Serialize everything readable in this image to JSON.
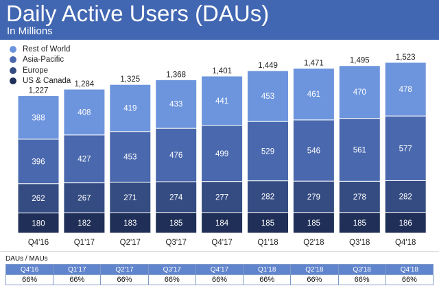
{
  "header": {
    "title": "Daily Active Users (DAUs)",
    "subtitle": "In Millions"
  },
  "colors": {
    "header_bg": "#4267b2",
    "rest_of_world": "#6d95dd",
    "asia_pacific": "#4a68ad",
    "europe": "#354c82",
    "us_canada": "#1f2f57",
    "table_header": "#6185cd"
  },
  "chart_data": {
    "type": "bar",
    "stacked": true,
    "categories": [
      "Q4'16",
      "Q1'17",
      "Q2'17",
      "Q3'17",
      "Q4'17",
      "Q1'18",
      "Q2'18",
      "Q3'18",
      "Q4'18"
    ],
    "series": [
      {
        "name": "US & Canada",
        "color": "#1f2f57",
        "values": [
          180,
          182,
          183,
          185,
          184,
          185,
          185,
          185,
          186
        ]
      },
      {
        "name": "Europe",
        "color": "#354c82",
        "values": [
          262,
          267,
          271,
          274,
          277,
          282,
          279,
          278,
          282
        ]
      },
      {
        "name": "Asia-Pacific",
        "color": "#4a68ad",
        "values": [
          396,
          427,
          453,
          476,
          499,
          529,
          546,
          561,
          577
        ]
      },
      {
        "name": "Rest of World",
        "color": "#6d95dd",
        "values": [
          388,
          408,
          419,
          433,
          441,
          453,
          461,
          470,
          478
        ]
      }
    ],
    "totals": [
      "1,227",
      "1,284",
      "1,325",
      "1,368",
      "1,401",
      "1,449",
      "1,471",
      "1,495",
      "1,523"
    ],
    "legend": [
      "Rest of World",
      "Asia-Pacific",
      "Europe",
      "US & Canada"
    ],
    "legend_position": "top-left",
    "ylim": [
      0,
      1600
    ],
    "grid": false
  },
  "dau_mau": {
    "label": "DAUs / MAUs",
    "quarters": [
      "Q4'16",
      "Q1'17",
      "Q2'17",
      "Q3'17",
      "Q4'17",
      "Q1'18",
      "Q2'18",
      "Q3'18",
      "Q4'18"
    ],
    "values": [
      "66%",
      "66%",
      "66%",
      "66%",
      "66%",
      "66%",
      "66%",
      "66%",
      "66%"
    ]
  }
}
